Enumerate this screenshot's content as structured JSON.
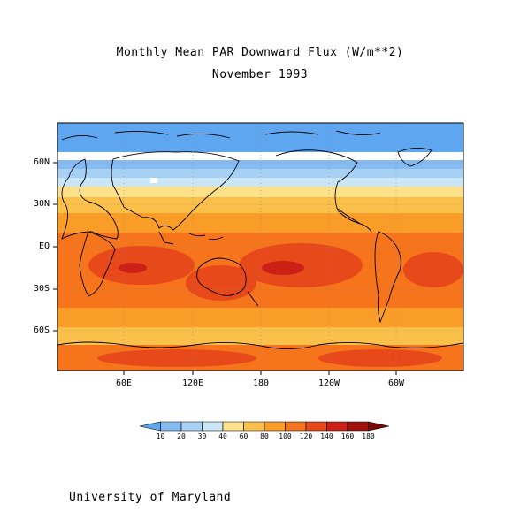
{
  "title": "Monthly Mean PAR Downward Flux (W/m**2)",
  "subtitle": "November 1993",
  "lat_labels": [
    "60N",
    "30N",
    "EQ",
    "30S",
    "60S"
  ],
  "lon_labels": [
    "60E",
    "120E",
    "180",
    "120W",
    "60W"
  ],
  "colorbar": {
    "labels": [
      "10",
      "20",
      "30",
      "40",
      "60",
      "80",
      "100",
      "120",
      "140",
      "160",
      "180"
    ],
    "colors": [
      "#5fa6f0",
      "#86bbf2",
      "#a6d1f5",
      "#c8e6f6",
      "#fde08a",
      "#fbc04a",
      "#f99c28",
      "#f5741c",
      "#e8491a",
      "#cc2016",
      "#a2100e",
      "#7a0808"
    ]
  },
  "credit": "University of Maryland"
}
